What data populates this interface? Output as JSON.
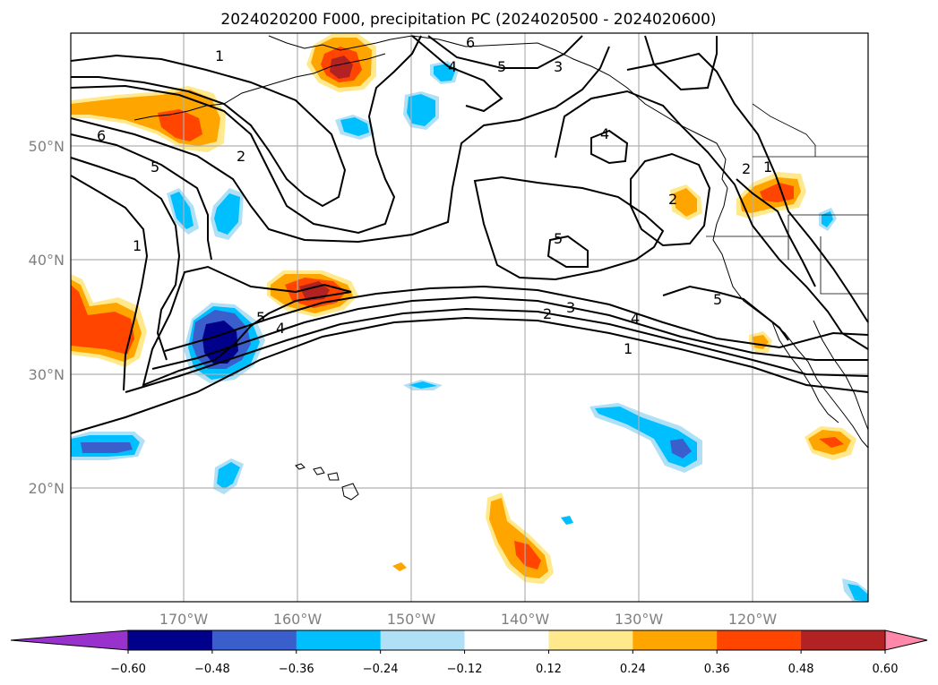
{
  "title": "2024020200 F000, precipitation PC (2024020500 - 2024020600)",
  "longitude_labels": [
    "170°W",
    "160°W",
    "150°W",
    "140°W",
    "130°W",
    "120°W"
  ],
  "latitude_labels": [
    "50°N",
    "40°N",
    "30°N",
    "20°N"
  ],
  "colorbar": {
    "tick_labels": [
      "−0.60",
      "−0.48",
      "−0.36",
      "−0.24",
      "−0.12",
      "0.12",
      "0.24",
      "0.36",
      "0.48",
      "0.60"
    ],
    "colors": [
      "#9932cc",
      "#00008b",
      "#3a5fcd",
      "#00bfff",
      "#b0e0f6",
      "#ffffff",
      "#ffe98c",
      "#ffa500",
      "#ff4500",
      "#b22222",
      "#ff88aa"
    ]
  },
  "contour_labels": [
    "1",
    "2",
    "3",
    "4",
    "5",
    "6"
  ],
  "palette": {
    "dark_blue": "#00008b",
    "mid_blue": "#3a5fcd",
    "blue": "#00bfff",
    "light_blue": "#b0e0f6",
    "yellow": "#ffe98c",
    "orange": "#ffa500",
    "red_orange": "#ff4500",
    "dark_red": "#b22222"
  }
}
